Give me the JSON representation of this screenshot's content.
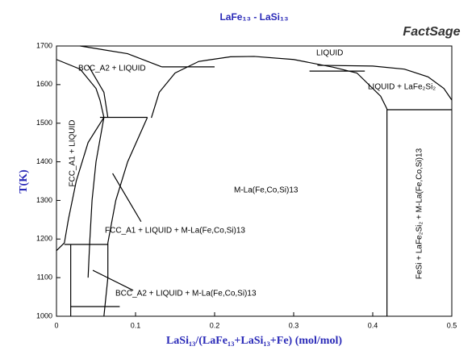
{
  "chart_data": {
    "type": "phase-diagram",
    "title": "LaFe₁₃ - LaSi₁₃",
    "logo": "FactSage",
    "x_label": "LaSi₁₃/(LaFe₁₃+LaSi₁₃+Fe) (mol/mol)",
    "y_label": "T(K)",
    "xlim": [
      0,
      0.5
    ],
    "ylim": [
      1000,
      1700
    ],
    "xticks": [
      0,
      0.1,
      0.2,
      0.3,
      0.4,
      0.5
    ],
    "yticks": [
      1000,
      1100,
      1200,
      1300,
      1400,
      1500,
      1600,
      1700
    ],
    "color": "#000000",
    "annotations": [
      "BCC_A2 + LIQUID",
      "LIQUID",
      "LIQUID + LaFe₂Si₂",
      "FCC_A1 + LIQUID",
      "M-La(Fe,Co,Si)13",
      "FCC_A1 + LIQUID + M-La(Fe,Co,Si)13",
      "BCC_A2 + LIQUID + M-La(Fe,Co,Si)13",
      "FeSi + LaFe₂Si₂ + M-La(Fe,Co,Si)13"
    ],
    "series": [
      {
        "x": [
          0.12,
          0.13,
          0.15,
          0.18,
          0.22,
          0.25,
          0.3,
          0.35,
          0.38,
          0.41,
          0.418
        ],
        "y": [
          1514,
          1580,
          1630,
          1660,
          1672,
          1673,
          1665,
          1645,
          1630,
          1570,
          1537
        ]
      },
      {
        "x": [
          0.418,
          0.418
        ],
        "y": [
          1537,
          1000
        ]
      },
      {
        "x": [
          0.418,
          0.5
        ],
        "y": [
          1535,
          1535
        ]
      },
      {
        "x": [
          0.03,
          0.09,
          0.133
        ],
        "y": [
          1700,
          1680,
          1646
        ]
      },
      {
        "x": [
          0.133,
          0.2
        ],
        "y": [
          1646,
          1646
        ]
      },
      {
        "x": [
          0,
          0.03,
          0.05,
          0.055,
          0.06
        ],
        "y": [
          1665,
          1640,
          1590,
          1560,
          1515
        ]
      },
      {
        "x": [
          0.04,
          0.06,
          0.065
        ],
        "y": [
          1650,
          1580,
          1515
        ]
      },
      {
        "x": [
          0.055,
          0.115
        ],
        "y": [
          1515,
          1515
        ]
      },
      {
        "x": [
          0.06,
          0.04,
          0.025,
          0.015,
          0.01,
          0
        ],
        "y": [
          1515,
          1450,
          1350,
          1250,
          1190,
          1170
        ]
      },
      {
        "x": [
          0.115,
          0.09,
          0.075,
          0.065,
          0.065,
          0.06
        ],
        "y": [
          1515,
          1400,
          1300,
          1190,
          1100,
          1000
        ]
      },
      {
        "x": [
          0.06,
          0.05,
          0.045,
          0.042,
          0.04
        ],
        "y": [
          1515,
          1400,
          1300,
          1190,
          1100
        ]
      },
      {
        "x": [
          0.01,
          0.065
        ],
        "y": [
          1186,
          1186
        ]
      },
      {
        "x": [
          0.018,
          0.018
        ],
        "y": [
          1186,
          1000
        ]
      },
      {
        "x": [
          0.018,
          0.08
        ],
        "y": [
          1025,
          1025
        ]
      },
      {
        "x": [
          0.33,
          0.4,
          0.44,
          0.47,
          0.49,
          0.5
        ],
        "y": [
          1650,
          1648,
          1640,
          1620,
          1590,
          1560
        ]
      },
      {
        "x": [
          0.32,
          0.39
        ],
        "y": [
          1635,
          1635
        ]
      },
      {
        "x": [
          0.071,
          0.107
        ],
        "y": [
          1370,
          1245
        ]
      },
      {
        "x": [
          0.046,
          0.097
        ],
        "y": [
          1119,
          1067
        ]
      }
    ]
  }
}
